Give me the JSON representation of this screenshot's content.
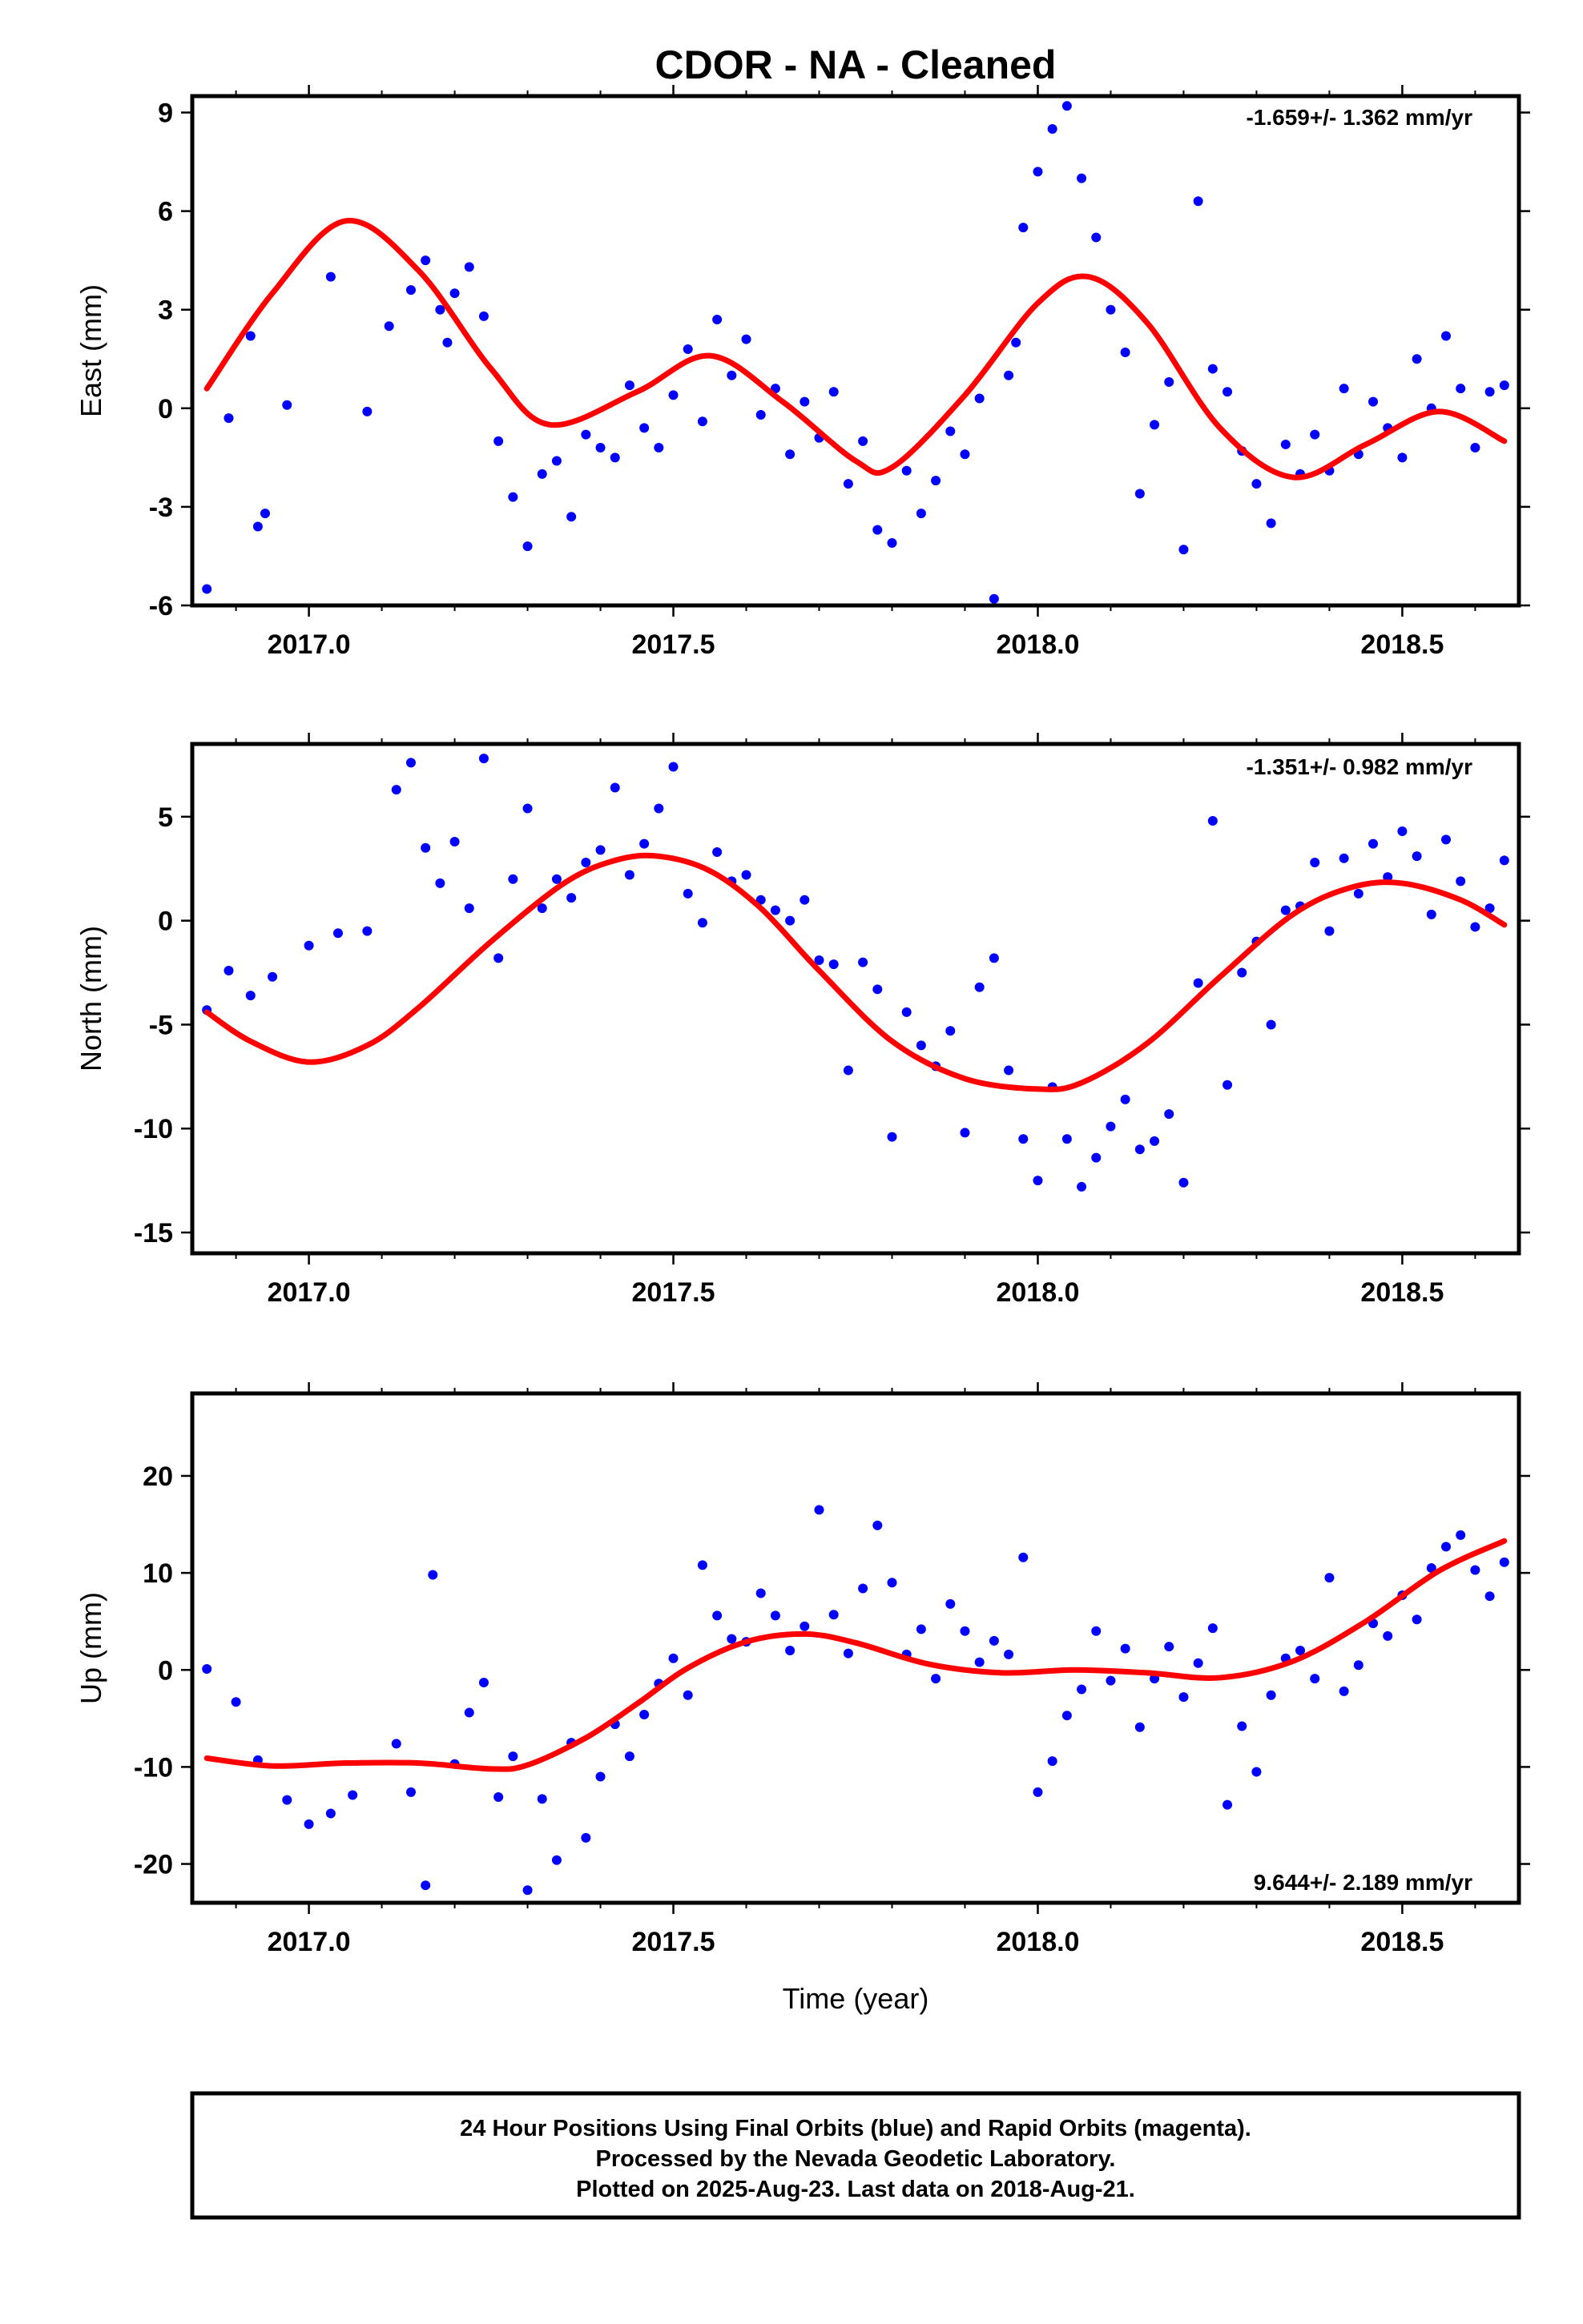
{
  "title": "CDOR  - NA - Cleaned",
  "x_axis_label": "Time (year)",
  "colors": {
    "final_orbits": "#0000ff",
    "fit": "#ff0000",
    "frame": "#000000"
  },
  "footer": {
    "line1": "24 Hour Positions Using Final Orbits (blue) and Rapid Orbits (magenta).",
    "line2": "Processed by the Nevada Geodetic Laboratory.",
    "line3": "Plotted on 2025-Aug-23. Last data on 2018-Aug-21."
  },
  "chart_data": [
    {
      "type": "scatter",
      "ylabel": "East (mm)",
      "rate": "-1.659+/- 1.362 mm/yr",
      "xlim": [
        2016.84,
        2018.66
      ],
      "ylim": [
        -6,
        9.5
      ],
      "x_ticks": [
        "2017.0",
        "2017.5",
        "2018.0",
        "2018.5"
      ],
      "y_ticks": [
        "-6",
        "-3",
        "0",
        "3",
        "6",
        "9"
      ],
      "fit": {
        "x": [
          2016.86,
          2016.95,
          2017.05,
          2017.15,
          2017.25,
          2017.33,
          2017.45,
          2017.55,
          2017.65,
          2017.75,
          2017.8,
          2017.9,
          2018.0,
          2018.07,
          2018.15,
          2018.25,
          2018.35,
          2018.45,
          2018.55,
          2018.64
        ],
        "y": [
          0.6,
          3.5,
          5.7,
          4.2,
          1.2,
          -0.5,
          0.5,
          1.6,
          0.2,
          -1.6,
          -1.8,
          0.4,
          3.2,
          4.0,
          2.6,
          -0.6,
          -2.1,
          -1.1,
          -0.1,
          -1.0
        ]
      },
      "points": {
        "x": [
          2016.86,
          2016.89,
          2016.92,
          2016.93,
          2016.94,
          2016.97,
          2017.03,
          2017.08,
          2017.11,
          2017.14,
          2017.16,
          2017.18,
          2017.19,
          2017.2,
          2017.22,
          2017.24,
          2017.26,
          2017.28,
          2017.3,
          2017.32,
          2017.34,
          2017.36,
          2017.38,
          2017.4,
          2017.42,
          2017.44,
          2017.46,
          2017.48,
          2017.5,
          2017.52,
          2017.54,
          2017.56,
          2017.58,
          2017.6,
          2017.62,
          2017.64,
          2017.66,
          2017.68,
          2017.7,
          2017.72,
          2017.74,
          2017.76,
          2017.78,
          2017.8,
          2017.82,
          2017.84,
          2017.86,
          2017.88,
          2017.9,
          2017.92,
          2017.94,
          2017.96,
          2017.97,
          2017.98,
          2018.0,
          2018.02,
          2018.04,
          2018.06,
          2018.08,
          2018.1,
          2018.12,
          2018.14,
          2018.16,
          2018.18,
          2018.2,
          2018.22,
          2018.24,
          2018.26,
          2018.28,
          2018.3,
          2018.32,
          2018.34,
          2018.36,
          2018.38,
          2018.4,
          2018.42,
          2018.44,
          2018.46,
          2018.48,
          2018.5,
          2018.52,
          2018.54,
          2018.56,
          2018.58,
          2018.6,
          2018.62,
          2018.64
        ],
        "y": [
          -5.5,
          -0.3,
          2.2,
          -3.6,
          -3.2,
          0.1,
          4.0,
          -0.1,
          2.5,
          3.6,
          4.5,
          3.0,
          2.0,
          3.5,
          4.3,
          2.8,
          -1.0,
          -2.7,
          -4.2,
          -2.0,
          -1.6,
          -3.3,
          -0.8,
          -1.2,
          -1.5,
          0.7,
          -0.6,
          -1.2,
          0.4,
          1.8,
          -0.4,
          2.7,
          1.0,
          2.1,
          -0.2,
          0.6,
          -1.4,
          0.2,
          -0.9,
          0.5,
          -2.3,
          -1.0,
          -3.7,
          -4.1,
          -1.9,
          -3.2,
          -2.2,
          -0.7,
          -1.4,
          0.3,
          -5.8,
          1.0,
          2.0,
          5.5,
          7.2,
          8.5,
          9.2,
          7.0,
          5.2,
          3.0,
          1.7,
          -2.6,
          -0.5,
          0.8,
          -4.3,
          6.3,
          1.2,
          0.5,
          -1.3,
          -2.3,
          -3.5,
          -1.1,
          -2.0,
          -0.8,
          -1.9,
          0.6,
          -1.4,
          0.2,
          -0.6,
          -1.5,
          1.5,
          0.0,
          2.2,
          0.6,
          -1.2,
          0.5,
          0.7
        ]
      }
    },
    {
      "type": "scatter",
      "ylabel": "North (mm)",
      "rate": "-1.351+/- 0.982 mm/yr",
      "xlim": [
        2016.84,
        2018.66
      ],
      "ylim": [
        -16,
        8.5
      ],
      "x_ticks": [
        "2017.0",
        "2017.5",
        "2018.0",
        "2018.5"
      ],
      "y_ticks": [
        "-15",
        "-10",
        "-5",
        "0",
        "5"
      ],
      "fit": {
        "x": [
          2016.86,
          2016.92,
          2017.0,
          2017.08,
          2017.15,
          2017.25,
          2017.35,
          2017.42,
          2017.48,
          2017.55,
          2017.62,
          2017.7,
          2017.8,
          2017.9,
          2018.0,
          2018.06,
          2018.15,
          2018.25,
          2018.35,
          2018.43,
          2018.5,
          2018.58,
          2018.64
        ],
        "y": [
          -4.4,
          -5.8,
          -6.8,
          -6.0,
          -4.2,
          -1.0,
          1.8,
          2.9,
          3.1,
          2.4,
          0.6,
          -2.4,
          -5.8,
          -7.6,
          -8.1,
          -7.8,
          -5.9,
          -2.7,
          0.3,
          1.6,
          1.8,
          1.0,
          -0.2
        ]
      },
      "points": {
        "x": [
          2016.86,
          2016.89,
          2016.92,
          2016.95,
          2017.0,
          2017.04,
          2017.08,
          2017.12,
          2017.14,
          2017.16,
          2017.18,
          2017.2,
          2017.22,
          2017.24,
          2017.26,
          2017.28,
          2017.3,
          2017.32,
          2017.34,
          2017.36,
          2017.38,
          2017.4,
          2017.42,
          2017.44,
          2017.46,
          2017.48,
          2017.5,
          2017.52,
          2017.54,
          2017.56,
          2017.58,
          2017.6,
          2017.62,
          2017.64,
          2017.66,
          2017.68,
          2017.7,
          2017.72,
          2017.74,
          2017.76,
          2017.78,
          2017.8,
          2017.82,
          2017.84,
          2017.86,
          2017.88,
          2017.9,
          2017.92,
          2017.94,
          2017.96,
          2017.98,
          2018.0,
          2018.02,
          2018.04,
          2018.06,
          2018.08,
          2018.1,
          2018.12,
          2018.14,
          2018.16,
          2018.18,
          2018.2,
          2018.22,
          2018.24,
          2018.26,
          2018.28,
          2018.3,
          2018.32,
          2018.34,
          2018.36,
          2018.38,
          2018.4,
          2018.42,
          2018.44,
          2018.46,
          2018.48,
          2018.5,
          2018.52,
          2018.54,
          2018.56,
          2018.58,
          2018.6,
          2018.62,
          2018.64
        ],
        "y": [
          -4.3,
          -2.4,
          -3.6,
          -2.7,
          -1.2,
          -0.6,
          -0.5,
          6.3,
          7.6,
          3.5,
          1.8,
          3.8,
          0.6,
          7.8,
          -1.8,
          2.0,
          5.4,
          0.6,
          2.0,
          1.1,
          2.8,
          3.4,
          6.4,
          2.2,
          3.7,
          5.4,
          7.4,
          1.3,
          -0.1,
          3.3,
          1.9,
          2.2,
          1.0,
          0.5,
          0.0,
          1.0,
          -1.9,
          -2.1,
          -7.2,
          -2.0,
          -3.3,
          -10.4,
          -4.4,
          -6.0,
          -7.0,
          -5.3,
          -10.2,
          -3.2,
          -1.8,
          -7.2,
          -10.5,
          -12.5,
          -8.0,
          -10.5,
          -12.8,
          -11.4,
          -9.9,
          -8.6,
          -11.0,
          -10.6,
          -9.3,
          -12.6,
          -3.0,
          4.8,
          -7.9,
          -2.5,
          -1.0,
          -5.0,
          0.5,
          0.7,
          2.8,
          -0.5,
          3.0,
          1.3,
          3.7,
          2.1,
          4.3,
          3.1,
          0.3,
          3.9,
          1.9,
          -0.3,
          0.6,
          2.9
        ]
      }
    },
    {
      "type": "scatter",
      "ylabel": "Up (mm)",
      "rate": "9.644+/- 2.189 mm/yr",
      "xlim": [
        2016.84,
        2018.66
      ],
      "ylim": [
        -24,
        28.5
      ],
      "x_ticks": [
        "2017.0",
        "2017.5",
        "2018.0",
        "2018.5"
      ],
      "y_ticks": [
        "-20",
        "-10",
        "0",
        "10",
        "20"
      ],
      "fit": {
        "x": [
          2016.86,
          2016.95,
          2017.05,
          2017.15,
          2017.25,
          2017.3,
          2017.38,
          2017.45,
          2017.52,
          2017.6,
          2017.68,
          2017.75,
          2017.85,
          2017.95,
          2018.05,
          2018.15,
          2018.25,
          2018.35,
          2018.45,
          2018.55,
          2018.64
        ],
        "y": [
          -9.1,
          -9.9,
          -9.6,
          -9.6,
          -10.2,
          -9.8,
          -7.0,
          -3.5,
          0.2,
          2.9,
          3.7,
          2.8,
          0.6,
          -0.3,
          0.0,
          -0.3,
          -0.8,
          0.9,
          5.0,
          10.2,
          13.3
        ]
      },
      "points": {
        "x": [
          2016.86,
          2016.9,
          2016.93,
          2016.97,
          2017.0,
          2017.03,
          2017.06,
          2017.12,
          2017.14,
          2017.16,
          2017.17,
          2017.2,
          2017.22,
          2017.24,
          2017.26,
          2017.28,
          2017.3,
          2017.32,
          2017.34,
          2017.36,
          2017.38,
          2017.4,
          2017.42,
          2017.44,
          2017.46,
          2017.48,
          2017.5,
          2017.52,
          2017.54,
          2017.56,
          2017.58,
          2017.6,
          2017.62,
          2017.64,
          2017.66,
          2017.68,
          2017.7,
          2017.72,
          2017.74,
          2017.76,
          2017.78,
          2017.8,
          2017.82,
          2017.84,
          2017.86,
          2017.88,
          2017.9,
          2017.92,
          2017.94,
          2017.96,
          2017.98,
          2018.0,
          2018.02,
          2018.04,
          2018.06,
          2018.08,
          2018.1,
          2018.12,
          2018.14,
          2018.16,
          2018.18,
          2018.2,
          2018.22,
          2018.24,
          2018.26,
          2018.28,
          2018.3,
          2018.32,
          2018.34,
          2018.36,
          2018.38,
          2018.4,
          2018.42,
          2018.44,
          2018.46,
          2018.48,
          2018.5,
          2018.52,
          2018.54,
          2018.56,
          2018.58,
          2018.6,
          2018.62,
          2018.64
        ],
        "y": [
          0.1,
          -3.3,
          -9.3,
          -13.4,
          -15.9,
          -14.8,
          -12.9,
          -7.6,
          -12.6,
          -22.2,
          9.8,
          -9.7,
          -4.4,
          -1.3,
          -13.1,
          -8.9,
          -22.7,
          -13.3,
          -19.6,
          -7.5,
          -17.3,
          -11.0,
          -5.6,
          -8.9,
          -4.6,
          -1.4,
          1.2,
          -2.6,
          10.8,
          5.6,
          3.2,
          2.9,
          7.9,
          5.6,
          2.0,
          4.5,
          16.5,
          5.7,
          1.7,
          8.4,
          14.9,
          9.0,
          1.6,
          4.2,
          -0.9,
          6.8,
          4.0,
          0.8,
          3.0,
          1.6,
          11.6,
          -12.6,
          -9.4,
          -4.7,
          -2.0,
          4.0,
          -1.1,
          2.2,
          -5.9,
          -0.9,
          2.4,
          -2.8,
          0.7,
          4.3,
          -13.9,
          -5.8,
          -10.5,
          -2.6,
          1.2,
          2.0,
          -0.9,
          9.5,
          -2.2,
          0.5,
          4.8,
          3.5,
          7.7,
          5.2,
          10.5,
          12.7,
          13.9,
          10.3,
          7.6,
          11.1
        ]
      }
    }
  ]
}
